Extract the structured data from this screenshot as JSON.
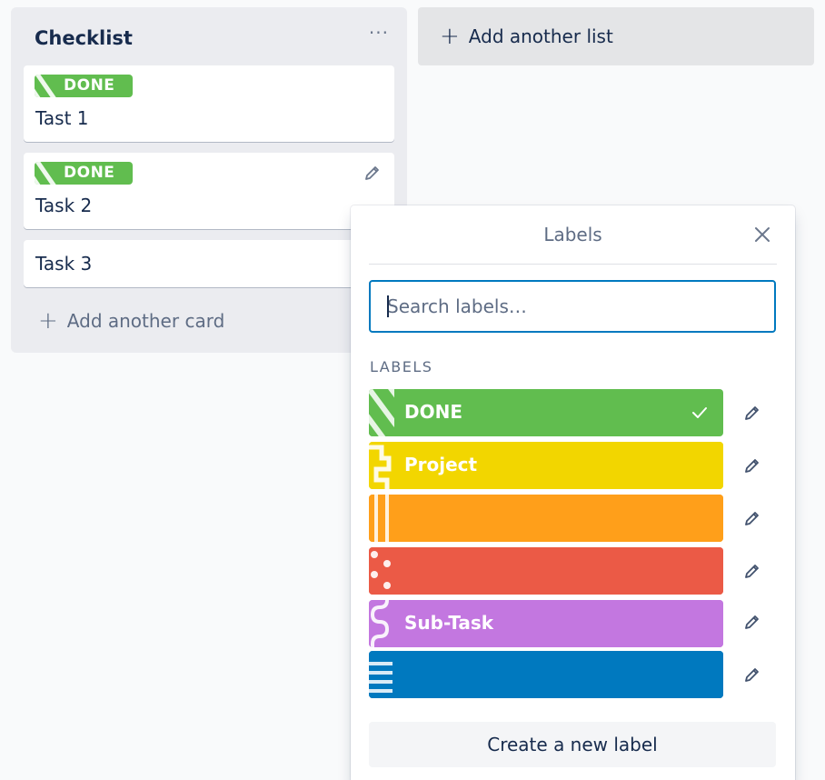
{
  "list": {
    "title": "Checklist",
    "menu_icon": "ellipsis-icon",
    "cards": [
      {
        "label": "DONE",
        "title": "Tast 1"
      },
      {
        "label": "DONE",
        "title": "Task 2"
      },
      {
        "title": "Task 3"
      }
    ],
    "add_card": "Add another card"
  },
  "add_list": "Add another list",
  "labels_popover": {
    "title": "Labels",
    "search_placeholder": "Search labels…",
    "section_heading": "LABELS",
    "labels": [
      {
        "name": "DONE",
        "color": "#61bd4f",
        "selected": true
      },
      {
        "name": "Project",
        "color": "#f2d600",
        "selected": false
      },
      {
        "name": "",
        "color": "#ff9f1a",
        "selected": false
      },
      {
        "name": "",
        "color": "#eb5a46",
        "selected": false
      },
      {
        "name": "Sub-Task",
        "color": "#c377e0",
        "selected": false
      },
      {
        "name": "",
        "color": "#0079bf",
        "selected": false
      }
    ],
    "create_button": "Create a new label"
  }
}
